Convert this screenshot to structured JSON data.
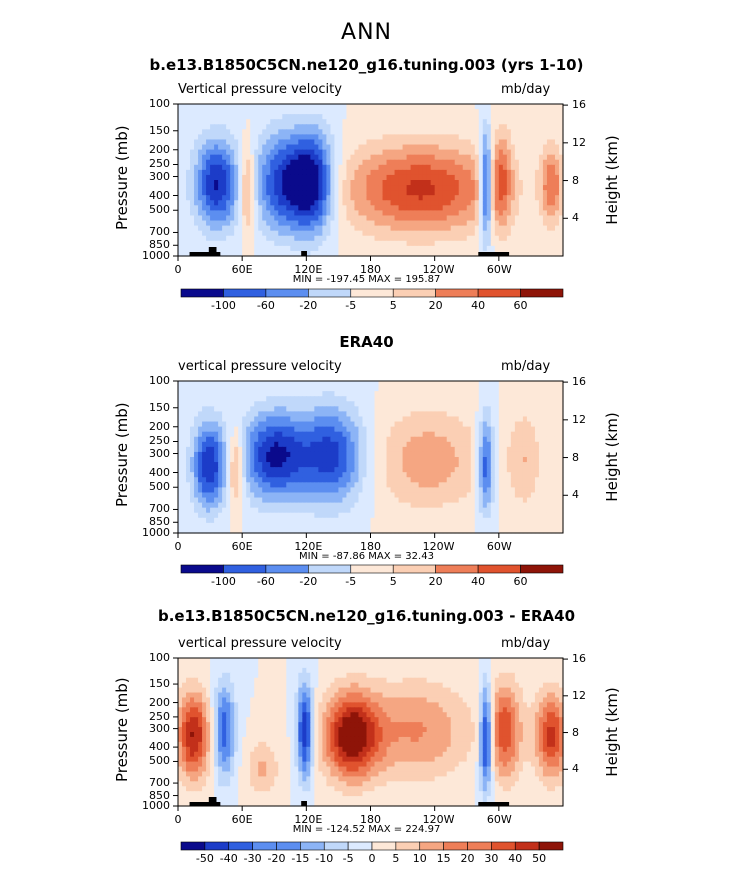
{
  "figure": {
    "suptitle": "ANN",
    "colors": {
      "scale": [
        "#0a0a8c",
        "#1c3cc8",
        "#3060e0",
        "#5c8ef0",
        "#8cb4f6",
        "#c0d8fa",
        "#dceaff",
        "#fde8d8",
        "#fbcfb4",
        "#f5a682",
        "#ee7e58",
        "#e0532e",
        "#c2301a",
        "#8e1408"
      ],
      "bar": "#000000"
    }
  },
  "chart_data": [
    {
      "type": "heatmap",
      "title": "b.e13.B1850C5CN.ne120_g16.tuning.003 (yrs 1-10)",
      "left_label": "Vertical pressure velocity",
      "right_label": "mb/day",
      "ylabel": "Pressure (mb)",
      "ylabel_right": "Height (km)",
      "yticks": [
        "100",
        "150",
        "200",
        "250",
        "300",
        "400",
        "500",
        "700",
        "850",
        "1000"
      ],
      "yticks_right": [
        "16",
        "12",
        "8",
        "4"
      ],
      "xticks": [
        "0",
        "60E",
        "120E",
        "180",
        "120W",
        "60W"
      ],
      "stats": "MIN = -197.45   MAX = 195.87",
      "colorbar_labels": [
        "-100",
        "-60",
        "-20",
        "-5",
        "5",
        "20",
        "40",
        "60"
      ]
    },
    {
      "type": "heatmap",
      "title": "ERA40",
      "left_label": "vertical pressure velocity",
      "right_label": "mb/day",
      "ylabel": "Pressure (mb)",
      "ylabel_right": "Height (km)",
      "yticks": [
        "100",
        "150",
        "200",
        "250",
        "300",
        "400",
        "500",
        "700",
        "850",
        "1000"
      ],
      "yticks_right": [
        "16",
        "12",
        "8",
        "4"
      ],
      "xticks": [
        "0",
        "60E",
        "120E",
        "180",
        "120W",
        "60W"
      ],
      "stats": "MIN = -87.86   MAX = 32.43",
      "colorbar_labels": [
        "-100",
        "-60",
        "-20",
        "-5",
        "5",
        "20",
        "40",
        "60"
      ]
    },
    {
      "type": "heatmap",
      "title": "b.e13.B1850C5CN.ne120_g16.tuning.003 - ERA40",
      "left_label": "vertical pressure velocity",
      "right_label": "mb/day",
      "ylabel": "Pressure (mb)",
      "ylabel_right": "Height (km)",
      "yticks": [
        "100",
        "150",
        "200",
        "250",
        "300",
        "400",
        "500",
        "700",
        "850",
        "1000"
      ],
      "yticks_right": [
        "16",
        "12",
        "8",
        "4"
      ],
      "xticks": [
        "0",
        "60E",
        "120E",
        "180",
        "120W",
        "60W"
      ],
      "stats": "MIN = -124.52   MAX = 224.97",
      "colorbar_labels": [
        "-50",
        "-40",
        "-30",
        "-20",
        "-15",
        "-10",
        "-5",
        "0",
        "5",
        "10",
        "15",
        "20",
        "30",
        "40",
        "50"
      ]
    }
  ]
}
